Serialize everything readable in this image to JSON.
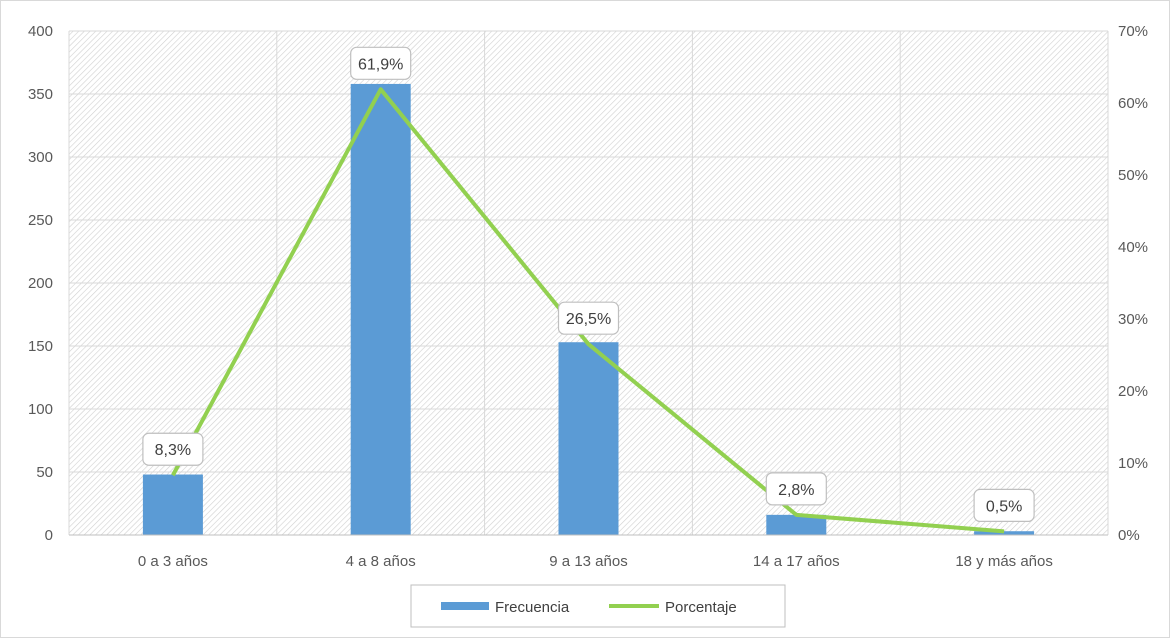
{
  "chart_data": {
    "type": "bar",
    "categories": [
      "0 a 3 años",
      "4 a 8 años",
      "9 a 13 años",
      "14 a 17 años",
      "18 y más años"
    ],
    "series": [
      {
        "name": "Frecuencia",
        "type": "bar",
        "axis": "left",
        "values": [
          48,
          358,
          153,
          16,
          3
        ]
      },
      {
        "name": "Porcentaje",
        "type": "line",
        "axis": "right",
        "values": [
          8.3,
          61.9,
          26.5,
          2.8,
          0.5
        ],
        "labels": [
          "8,3%",
          "61,9%",
          "26,5%",
          "2,8%",
          "0,5%"
        ]
      }
    ],
    "y_left": {
      "min": 0,
      "max": 400,
      "ticks": [
        "0",
        "50",
        "100",
        "150",
        "200",
        "250",
        "300",
        "350",
        "400"
      ],
      "tick_values": [
        0,
        50,
        100,
        150,
        200,
        250,
        300,
        350,
        400
      ]
    },
    "y_right": {
      "min": 0,
      "max": 70,
      "ticks": [
        "0%",
        "10%",
        "20%",
        "30%",
        "40%",
        "50%",
        "60%",
        "70%"
      ],
      "tick_values": [
        0,
        10,
        20,
        30,
        40,
        50,
        60,
        70
      ]
    },
    "grid": true,
    "plot_fill": "hatched",
    "legend_position": "bottom",
    "colors": {
      "bar": "#5B9BD5",
      "line": "#92D050",
      "grid": "#d9d9d9",
      "hatch": "#d0d0d0"
    }
  }
}
